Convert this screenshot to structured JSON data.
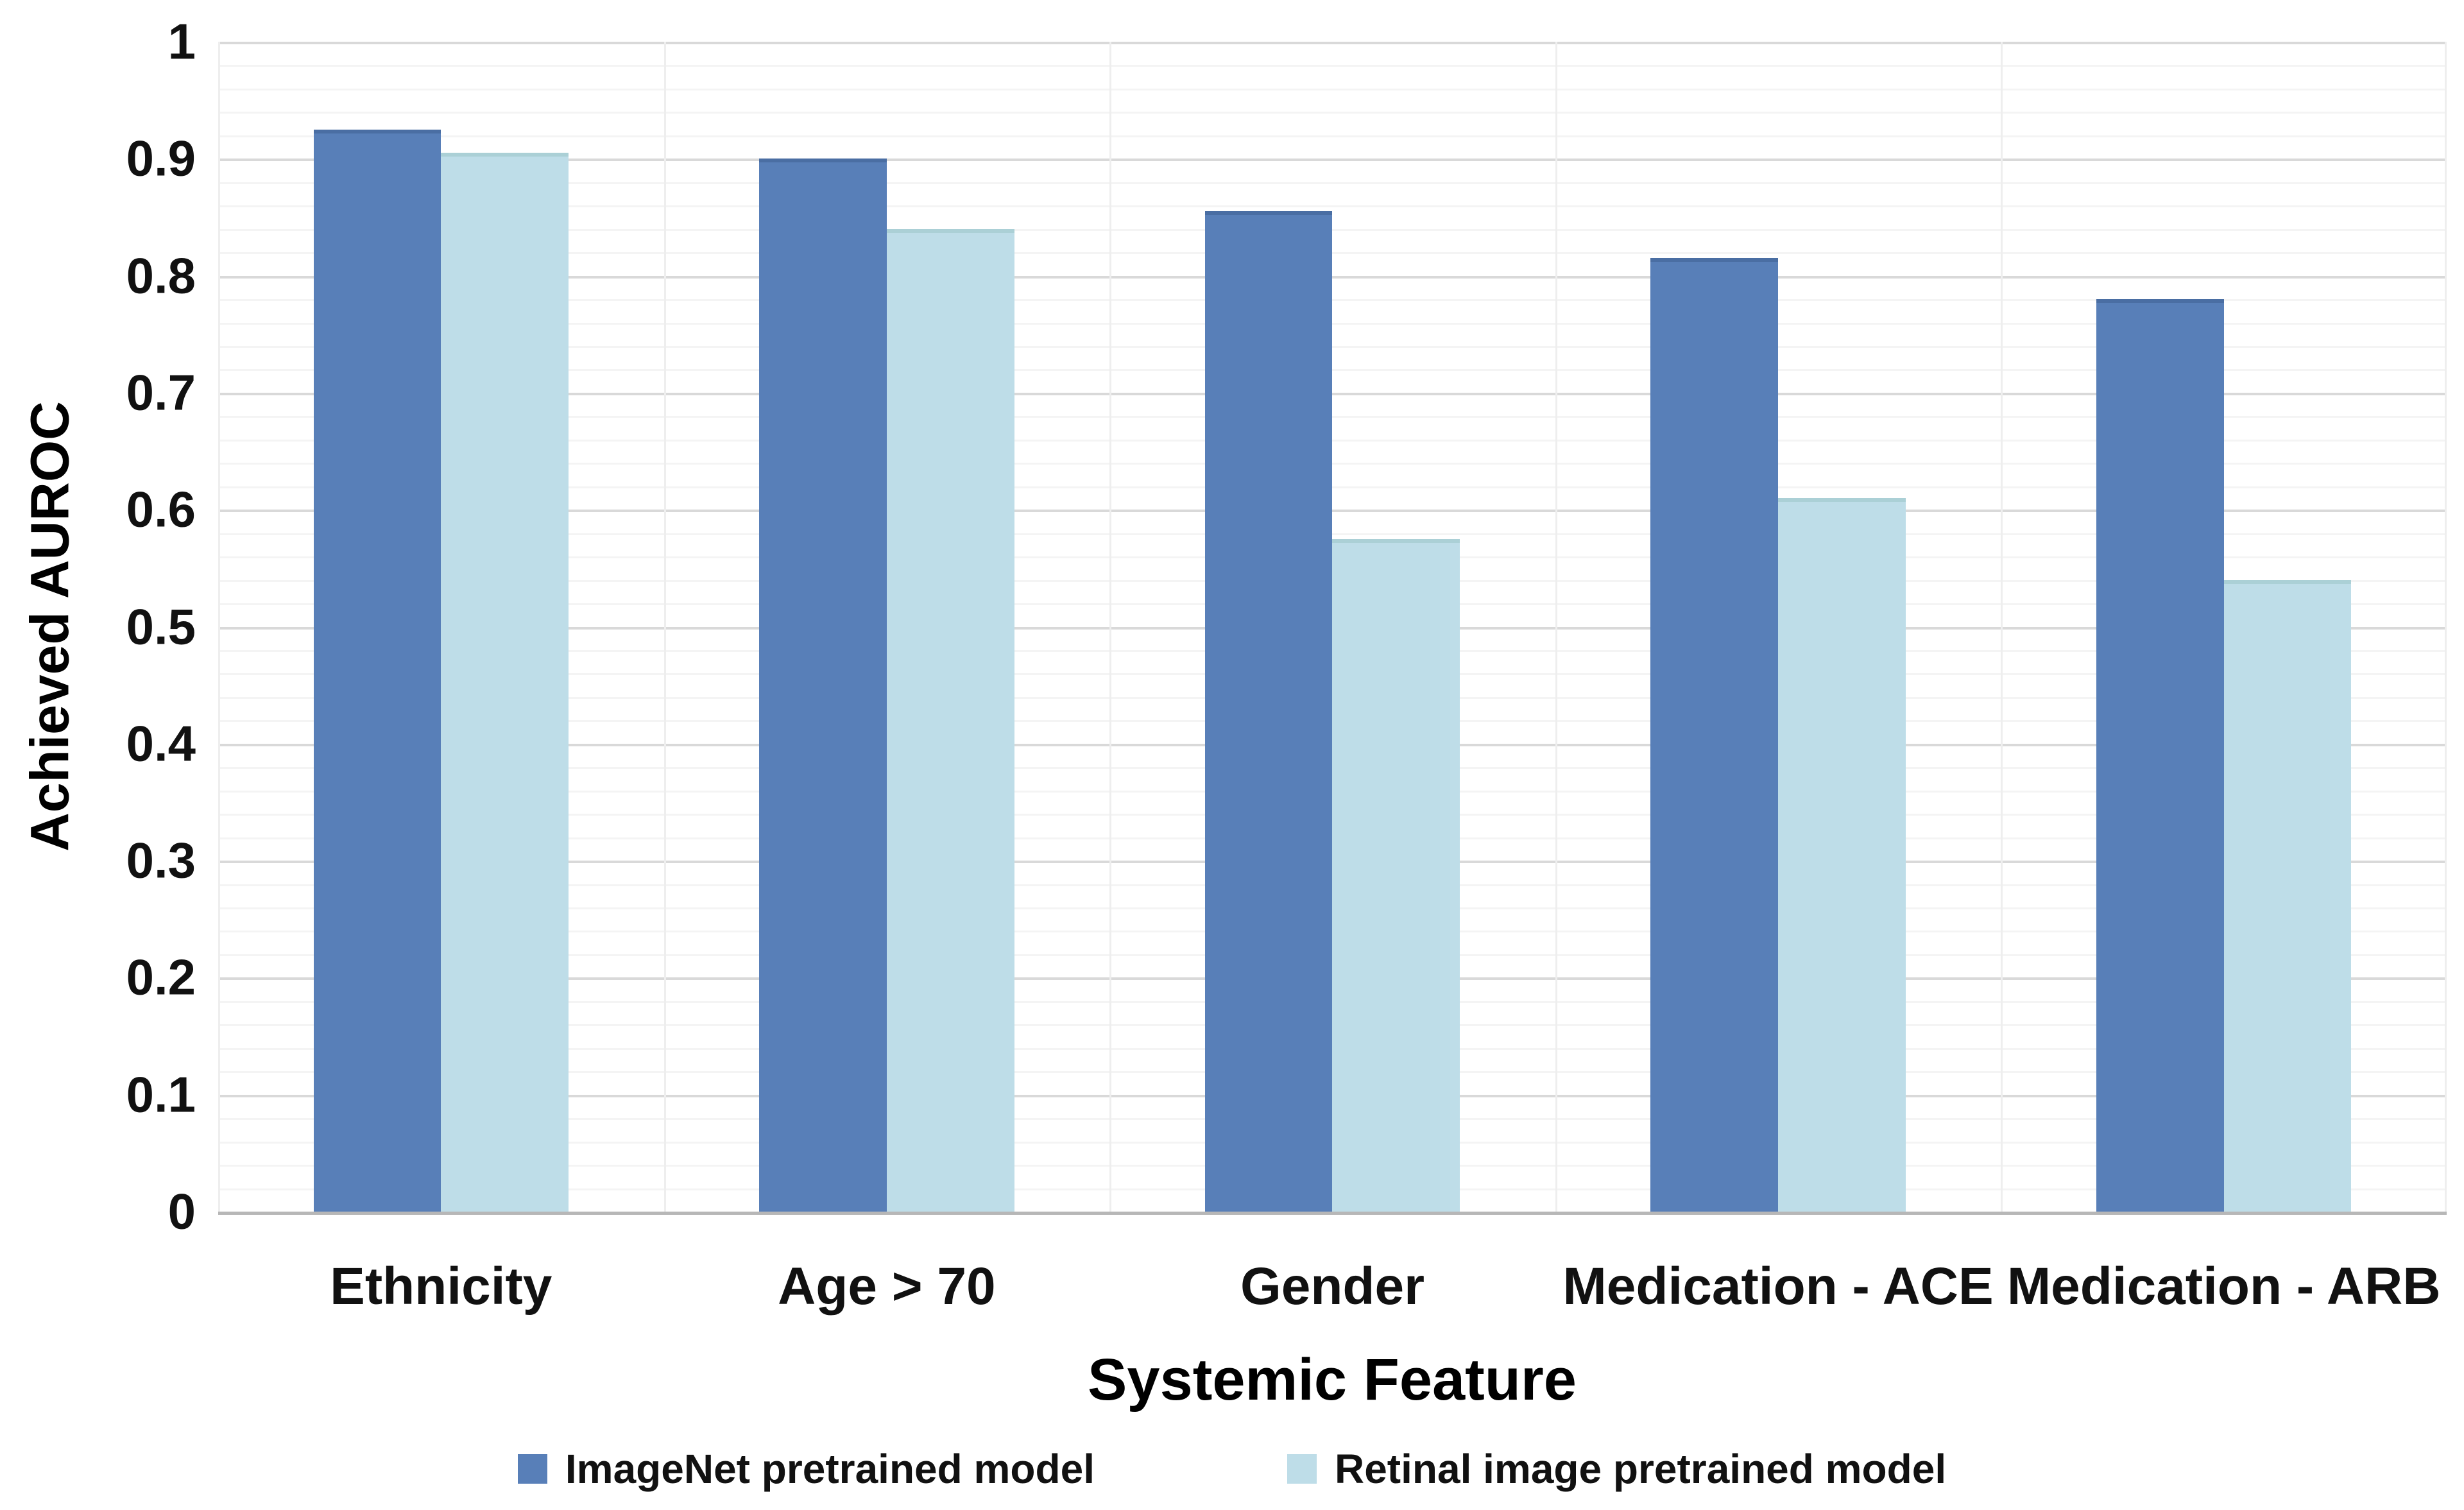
{
  "figure": {
    "background_color": "#ffffff",
    "grid": {
      "major_color": "#d9d9d9",
      "minor_color": "#f4f4f4",
      "vertical_color": "#eeeeee",
      "axis_line_color": "#b7b7b7",
      "major_step": 0.1,
      "minor_step": 0.02,
      "grid_on": true
    }
  },
  "chart_data": {
    "type": "bar",
    "title": "",
    "xlabel": "Systemic Feature",
    "ylabel": "Achieved AUROC",
    "ylim": [
      0,
      1
    ],
    "yticks": [
      {
        "value": 1,
        "label": "1"
      },
      {
        "value": 0.9,
        "label": "0.9"
      },
      {
        "value": 0.8,
        "label": "0.8"
      },
      {
        "value": 0.7,
        "label": "0.7"
      },
      {
        "value": 0.6,
        "label": "0.6"
      },
      {
        "value": 0.5,
        "label": "0.5"
      },
      {
        "value": 0.4,
        "label": "0.4"
      },
      {
        "value": 0.3,
        "label": "0.3"
      },
      {
        "value": 0.2,
        "label": "0.2"
      },
      {
        "value": 0.1,
        "label": "0.1"
      },
      {
        "value": 0,
        "label": "0"
      }
    ],
    "categories": [
      "Ethnicity",
      "Age > 70",
      "Gender",
      "Medication - ACE",
      "Medication - ARB"
    ],
    "series": [
      {
        "name": "ImageNet pretrained model",
        "color": "#587FB8",
        "edge_color": "#4a6ea3",
        "values": [
          0.925,
          0.9,
          0.855,
          0.815,
          0.78
        ]
      },
      {
        "name": "Retinal image pretrained model",
        "color": "#BEDDE8",
        "edge_color": "#abd0d6",
        "values": [
          0.905,
          0.84,
          0.575,
          0.61,
          0.54
        ]
      }
    ],
    "legend_position": "bottom-center",
    "grid_on": true
  }
}
